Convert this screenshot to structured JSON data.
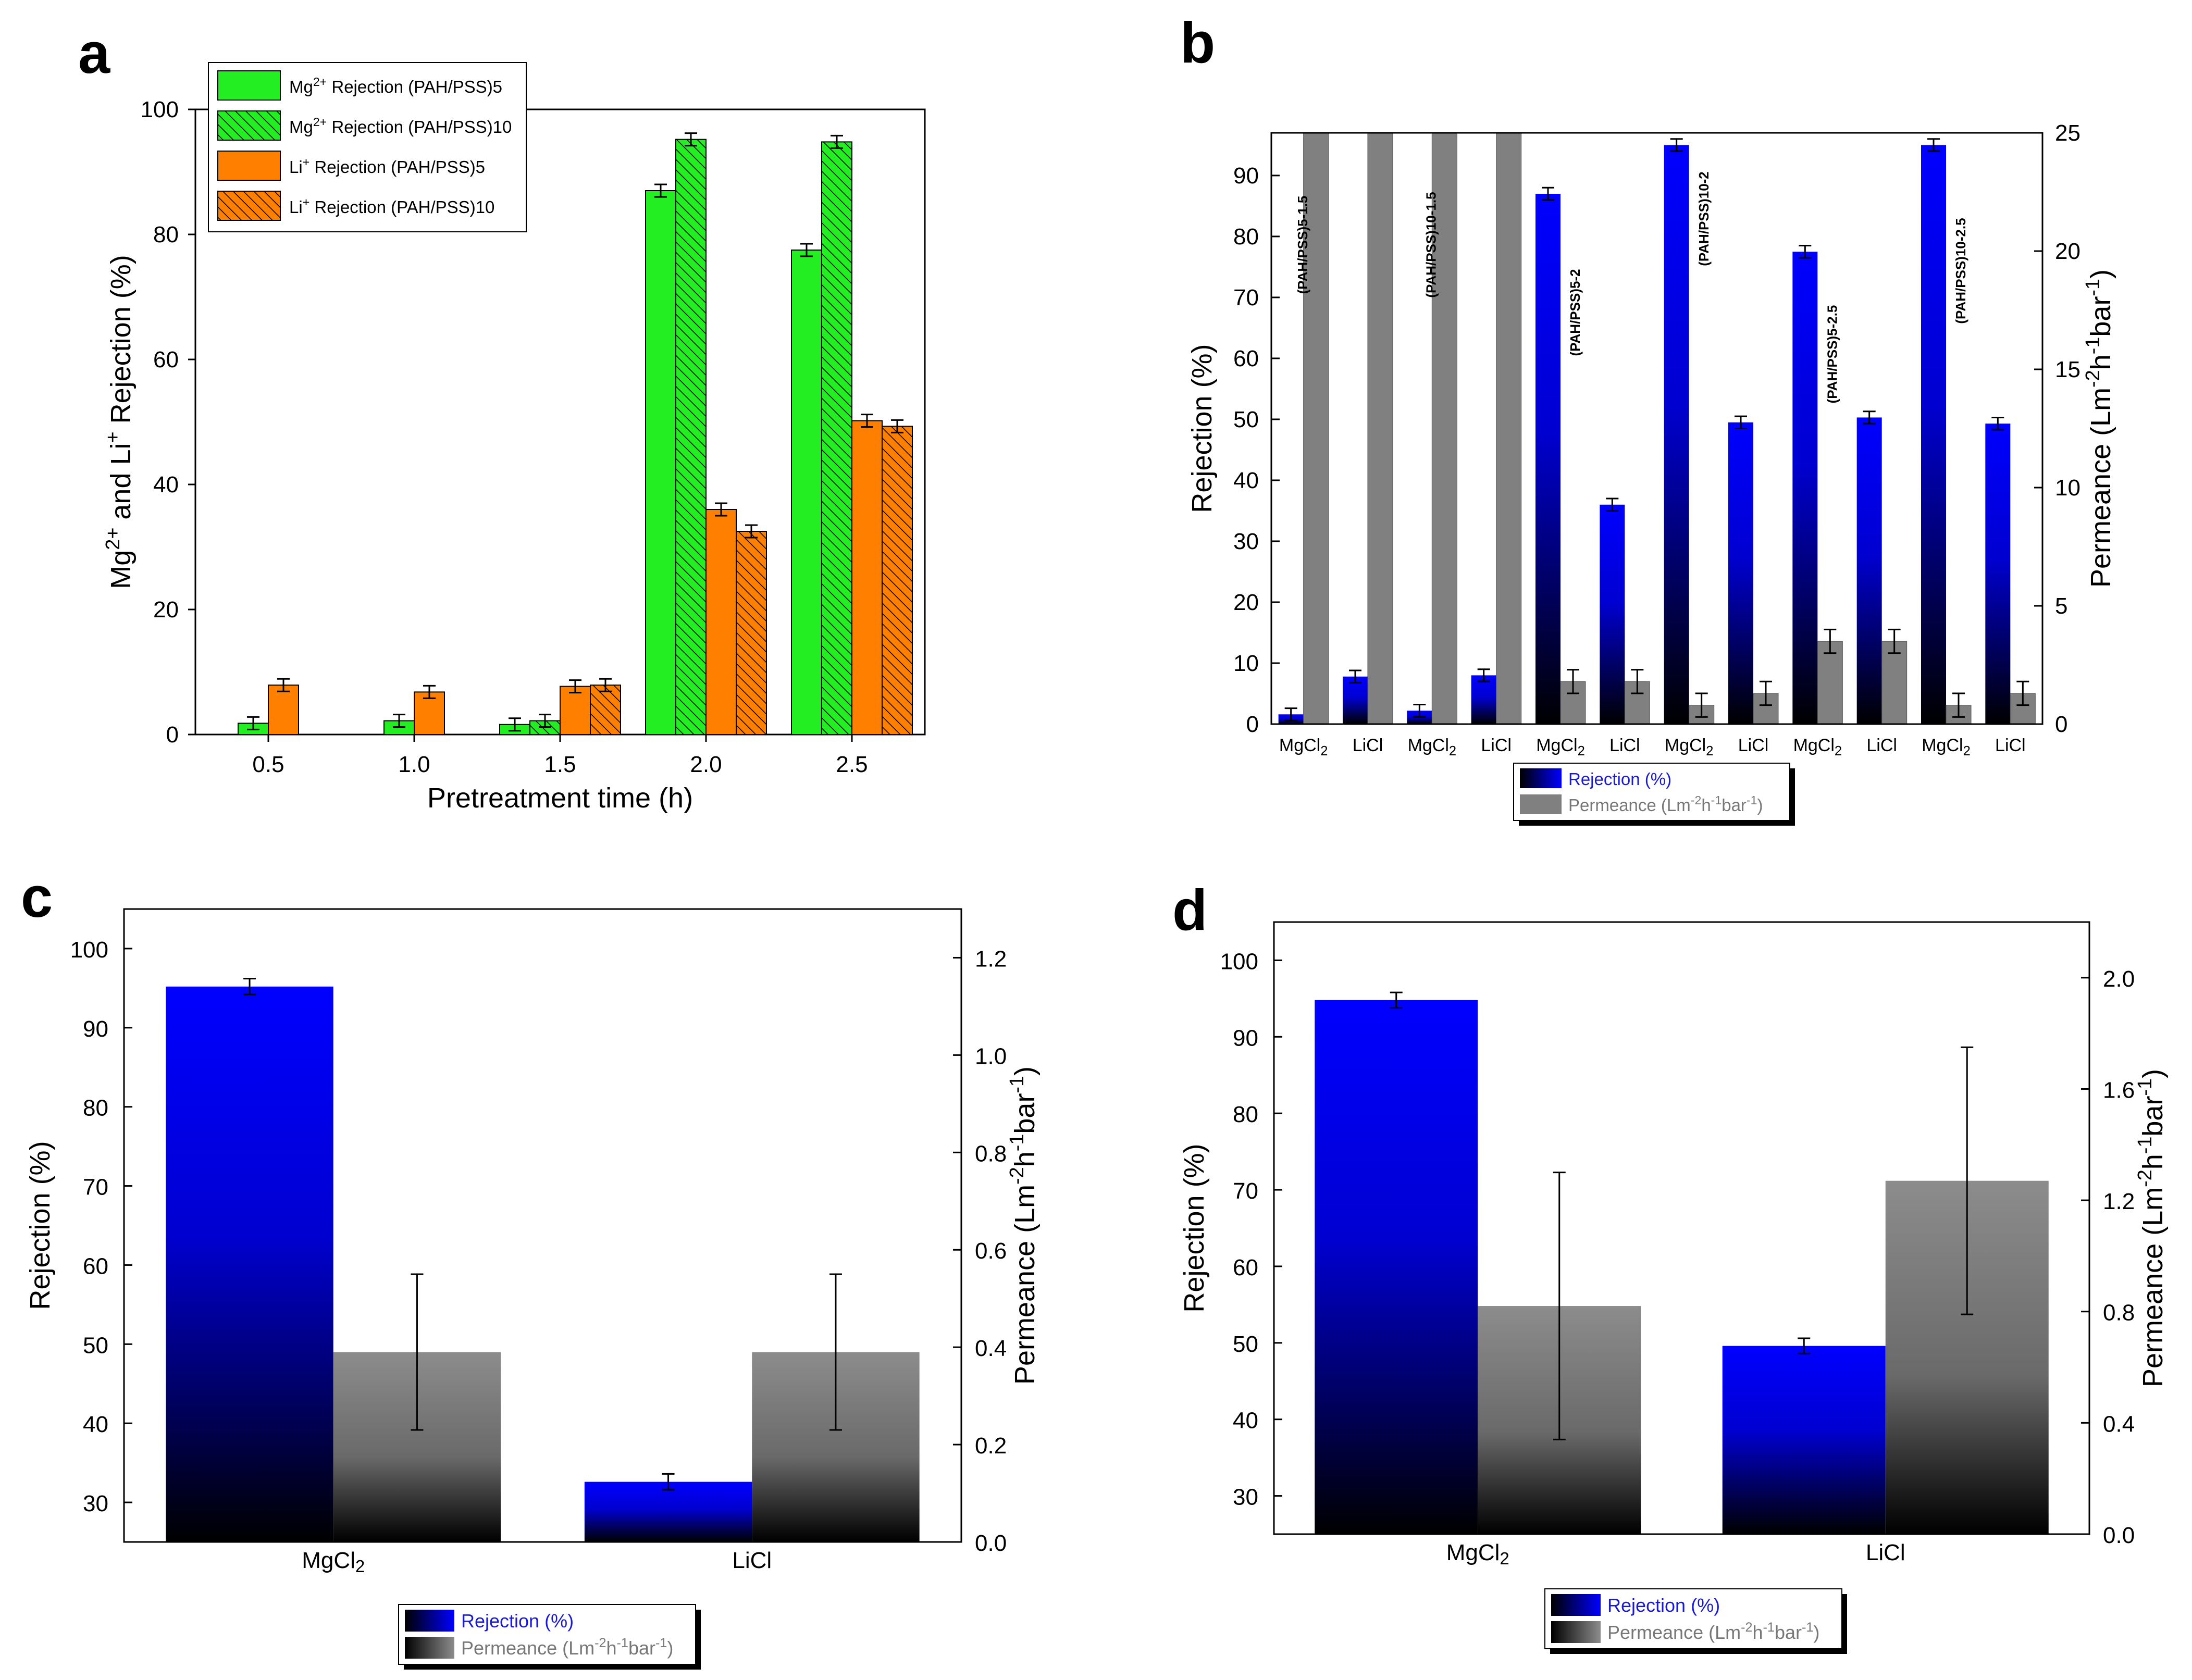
{
  "chart_data": [
    {
      "panel": "a",
      "type": "bar",
      "xlabel": "Pretreatment time (h)",
      "ylabel": "Mg²⁺ and Li⁺ Rejection (%)",
      "ylim": [
        0,
        100
      ],
      "yticks": [
        0,
        20,
        40,
        60,
        80,
        100
      ],
      "categories": [
        "0.5",
        "1.0",
        "1.5",
        "2.0",
        "2.5"
      ],
      "series": [
        {
          "name": "Mg²⁺ Rejection (PAH/PSS)5",
          "color": "#22ee22",
          "hatch": false,
          "values": [
            1.8,
            2.2,
            1.6,
            87,
            77.5
          ],
          "errors": [
            1,
            1,
            1,
            1,
            1
          ]
        },
        {
          "name": "Mg²⁺ Rejection (PAH/PSS)10",
          "color": "#22ee22",
          "hatch": true,
          "values": [
            null,
            null,
            2.2,
            95.2,
            94.8
          ],
          "errors": [
            null,
            null,
            1,
            1,
            1
          ]
        },
        {
          "name": "Li⁺ Rejection (PAH/PSS)5",
          "color": "#ff8000",
          "hatch": false,
          "values": [
            7.9,
            6.8,
            7.7,
            36,
            50.2
          ],
          "errors": [
            1,
            1,
            1,
            1,
            1
          ]
        },
        {
          "name": "Li⁺ Rejection (PAH/PSS)10",
          "color": "#ff8000",
          "hatch": true,
          "values": [
            null,
            null,
            7.9,
            32.5,
            49.3
          ],
          "errors": [
            null,
            null,
            1,
            1,
            1
          ]
        }
      ]
    },
    {
      "panel": "b",
      "type": "bar",
      "ylabel": "Rejection (%)",
      "y2label": "Permeance (Lm⁻²h⁻¹bar⁻¹)",
      "ylim": [
        0,
        97
      ],
      "y2lim": [
        0,
        25
      ],
      "yticks": [
        0,
        10,
        20,
        30,
        40,
        50,
        60,
        70,
        80,
        90
      ],
      "y2ticks": [
        0,
        5,
        10,
        15,
        20,
        25
      ],
      "categories": [
        "MgCl2",
        "LiCl",
        "MgCl2",
        "LiCl",
        "MgCl2",
        "LiCl",
        "MgCl2",
        "LiCl",
        "MgCl2",
        "LiCl",
        "MgCl2",
        "LiCl"
      ],
      "group_labels": [
        "(PAH/PSS)5-1.5",
        "(PAH/PSS)10-1.5",
        "(PAH/PSS)5-2",
        "(PAH/PSS)10-2",
        "(PAH/PSS)5-2.5",
        "(PAH/PSS)10-2.5"
      ],
      "series": [
        {
          "name": "Rejection (%)",
          "color": "#0000ff",
          "axis": "left",
          "values": [
            1.6,
            7.8,
            2.2,
            8.0,
            87,
            36,
            95,
            49.5,
            77.5,
            50.3,
            95,
            49.3
          ],
          "errors": [
            1,
            1,
            1,
            1,
            1,
            1,
            1,
            1,
            1,
            1,
            1,
            1
          ]
        },
        {
          "name": "Permeance (Lm⁻²h⁻¹bar⁻¹)",
          "color": "#808080",
          "axis": "right",
          "values": [
            25,
            25,
            25,
            25,
            1.8,
            1.8,
            0.8,
            1.3,
            3.5,
            3.5,
            0.8,
            1.3
          ],
          "errors": [
            null,
            null,
            null,
            null,
            0.5,
            0.5,
            0.5,
            0.5,
            0.5,
            0.5,
            0.5,
            0.5
          ]
        }
      ]
    },
    {
      "panel": "c",
      "type": "bar",
      "ylabel": "Rejection (%)",
      "y2label": "Permeance (Lm⁻²h⁻¹bar⁻¹)",
      "ylim": [
        25,
        105
      ],
      "y2lim": [
        0,
        1.3
      ],
      "yticks": [
        30,
        40,
        50,
        60,
        70,
        80,
        90,
        100
      ],
      "y2ticks": [
        "0.0",
        "0.2",
        "0.4",
        "0.6",
        "0.8",
        "1.0",
        "1.2"
      ],
      "categories": [
        "MgCl2",
        "LiCl"
      ],
      "series": [
        {
          "name": "Rejection (%)",
          "color": "#0000ff",
          "axis": "left",
          "values": [
            95.2,
            32.6
          ],
          "errors": [
            1,
            1
          ]
        },
        {
          "name": "Permeance (Lm⁻²h⁻¹bar⁻¹)",
          "color": "#808080",
          "axis": "right",
          "values": [
            0.39,
            0.39
          ],
          "errors": [
            0.16,
            0.16
          ]
        }
      ]
    },
    {
      "panel": "d",
      "type": "bar",
      "ylabel": "Rejection (%)",
      "y2label": "Permeance (Lm⁻²h⁻¹bar⁻¹)",
      "ylim": [
        25,
        105
      ],
      "y2lim": [
        0,
        2.2
      ],
      "yticks": [
        30,
        40,
        50,
        60,
        70,
        80,
        90,
        100
      ],
      "y2ticks": [
        "0.0",
        "0.4",
        "0.8",
        "1.2",
        "1.6",
        "2.0"
      ],
      "categories": [
        "MgCl2",
        "LiCl"
      ],
      "series": [
        {
          "name": "Rejection (%)",
          "color": "#0000ff",
          "axis": "left",
          "values": [
            94.8,
            49.6
          ],
          "errors": [
            1,
            1
          ]
        },
        {
          "name": "Permeance (Lm⁻²h⁻¹bar⁻¹)",
          "color": "#808080",
          "axis": "right",
          "values": [
            0.82,
            1.27
          ],
          "errors": [
            0.48,
            0.48
          ]
        }
      ]
    }
  ]
}
